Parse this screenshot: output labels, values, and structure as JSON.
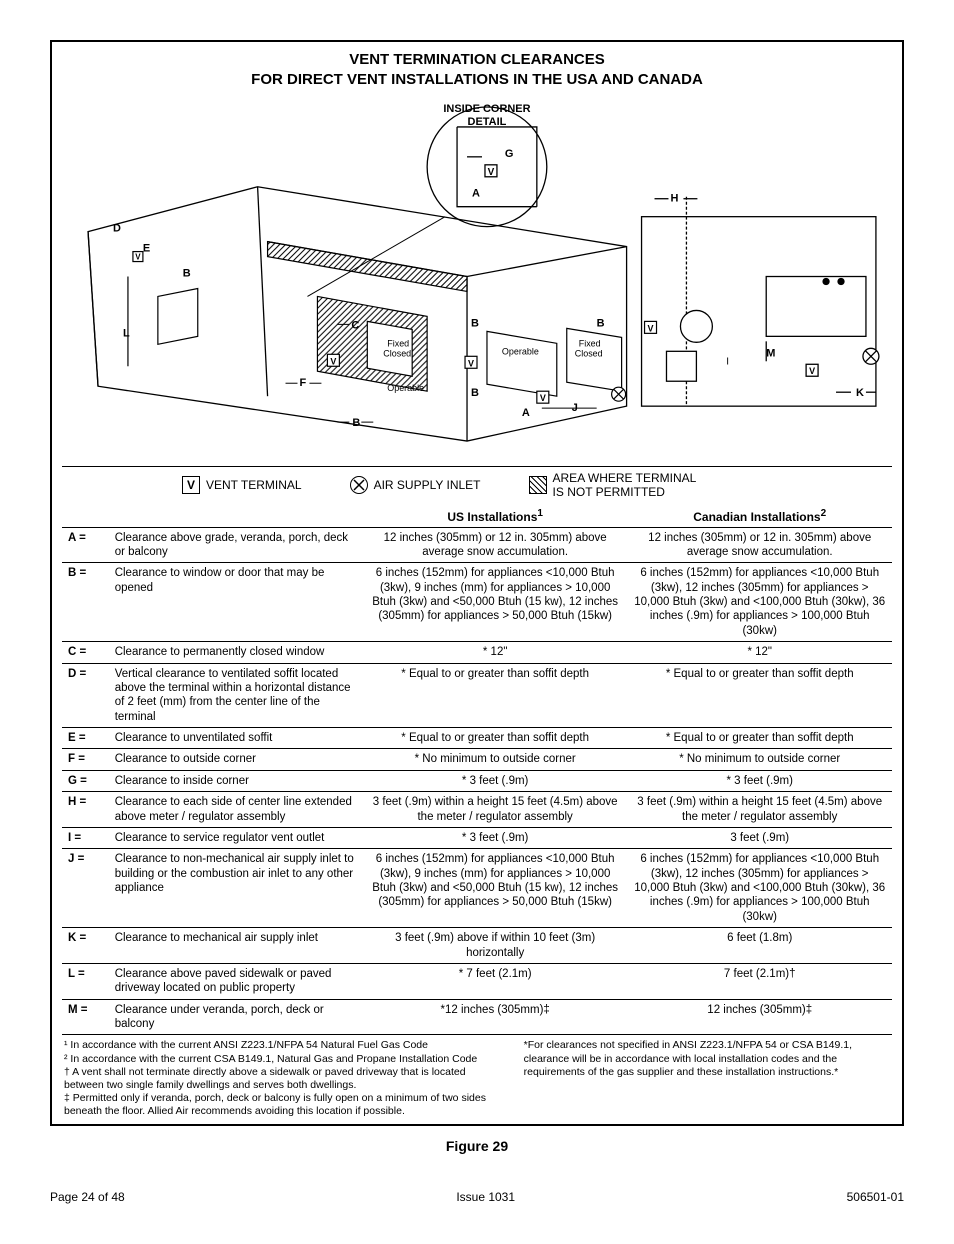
{
  "title": {
    "line1": "VENT TERMINATION CLEARANCES",
    "line2": "FOR DIRECT VENT INSTALLATIONS IN THE USA AND CANADA"
  },
  "diagram": {
    "inside_corner_detail": "INSIDE CORNER DETAIL",
    "fixed_closed": "Fixed Closed",
    "operable": "Operable",
    "letters": [
      "A",
      "B",
      "C",
      "D",
      "E",
      "F",
      "G",
      "H",
      "I",
      "J",
      "K",
      "L",
      "M"
    ],
    "V_symbol": "V"
  },
  "legend": {
    "vent_terminal": "VENT TERMINAL",
    "air_supply_inlet": "AIR SUPPLY INLET",
    "not_permitted_l1": "AREA WHERE TERMINAL",
    "not_permitted_l2": "IS NOT PERMITTED"
  },
  "headers": {
    "blank": "",
    "us": "US Installations",
    "us_sup": "1",
    "ca": "Canadian Installations",
    "ca_sup": "2"
  },
  "rows": [
    {
      "k": "A =",
      "d": "Clearance above grade, veranda, porch, deck or balcony",
      "us": "12 inches (305mm) or 12 in. 305mm) above average snow accumulation.",
      "ca": "12 inches (305mm) or 12 in. 305mm) above average snow accumulation."
    },
    {
      "k": "B =",
      "d": "Clearance to window or door that may be opened",
      "us": "6 inches (152mm) for appliances <10,000 Btuh (3kw), 9 inches (mm) for appliances > 10,000 Btuh (3kw) and <50,000 Btuh (15 kw), 12 inches (305mm) for appliances > 50,000 Btuh (15kw)",
      "ca": "6 inches (152mm) for appliances <10,000 Btuh (3kw), 12 inches (305mm) for appliances > 10,000 Btuh (3kw) and <100,000 Btuh (30kw), 36 inches (.9m) for appliances > 100,000 Btuh (30kw)"
    },
    {
      "k": "C =",
      "d": "Clearance to permanently closed window",
      "us": "* 12\"",
      "ca": "* 12\""
    },
    {
      "k": "D =",
      "d": "Vertical clearance to ventilated soffit located above the terminal within a horizontal distance of 2 feet (mm) from the center line of the terminal",
      "us": "* Equal to or greater than soffit depth",
      "ca": "* Equal to or greater than soffit depth"
    },
    {
      "k": "E =",
      "d": "Clearance to unventilated soffit",
      "us": "* Equal to or greater than soffit depth",
      "ca": "* Equal to or greater than soffit depth"
    },
    {
      "k": "F =",
      "d": "Clearance to outside corner",
      "us": "* No minimum to outside corner",
      "ca": "* No minimum to outside corner"
    },
    {
      "k": "G =",
      "d": "Clearance to inside corner",
      "us": "* 3 feet (.9m)",
      "ca": "* 3 feet (.9m)"
    },
    {
      "k": "H =",
      "d": "Clearance to each side of center line extended above meter / regulator assembly",
      "us": "3 feet (.9m) within a height 15 feet (4.5m) above the meter / regulator assembly",
      "ca": "3 feet (.9m) within a height 15 feet (4.5m) above the meter / regulator assembly"
    },
    {
      "k": "I =",
      "d": "Clearance to service regulator vent outlet",
      "us": "*  3 feet (.9m)",
      "ca": "3 feet (.9m)"
    },
    {
      "k": "J =",
      "d": "Clearance to non-mechanical air supply inlet to building or the combustion air inlet to any other appliance",
      "us": "6 inches (152mm) for appliances <10,000 Btuh (3kw), 9 inches (mm) for appliances > 10,000 Btuh (3kw) and <50,000 Btuh (15 kw), 12 inches (305mm) for appliances > 50,000 Btuh (15kw)",
      "ca": "6 inches (152mm) for appliances <10,000 Btuh (3kw), 12 inches (305mm) for appliances > 10,000 Btuh (3kw) and <100,000 Btuh (30kw), 36 inches (.9m) for appliances > 100,000 Btuh (30kw)"
    },
    {
      "k": "K =",
      "d": "Clearance to mechanical air supply inlet",
      "us": "3 feet (.9m) above if within 10 feet (3m) horizontally",
      "ca": "6 feet (1.8m)"
    },
    {
      "k": "L =",
      "d": "Clearance above paved sidewalk or paved driveway located on public property",
      "us": "* 7 feet (2.1m)",
      "ca": "7 feet (2.1m)†"
    },
    {
      "k": "M =",
      "d": "Clearance under veranda, porch, deck or balcony",
      "us": "*12 inches (305mm)‡",
      "ca": "12 inches (305mm)‡"
    }
  ],
  "footnotes": {
    "f1": "¹ In accordance with the current ANSI Z223.1/NFPA 54 Natural Fuel Gas Code",
    "f2": "² In accordance with the current CSA B149.1, Natural Gas and Propane Installation Code",
    "f3": "† A vent shall not terminate directly above a sidewalk or paved driveway that is located between two single family dwellings and serves both dwellings.",
    "f4": "‡ Permitted only if veranda, porch, deck or balcony is fully open on a minimum of two sides beneath the floor.  Allied Air recommends avoiding this location if possible.",
    "star": "*For clearances not specified in ANSI Z223.1/NFPA 54 or CSA B149.1, clearance will be  in accordance with local installation codes and the requirements of the gas supplier and these installation instructions.*"
  },
  "figure_label": "Figure 29",
  "footer": {
    "left": "Page 24 of 48",
    "center": "Issue 1031",
    "right": "506501-01"
  },
  "style": {
    "font_family": "Arial, Helvetica, sans-serif",
    "text_color": "#000000",
    "bg_color": "#ffffff",
    "border_color": "#000000"
  }
}
